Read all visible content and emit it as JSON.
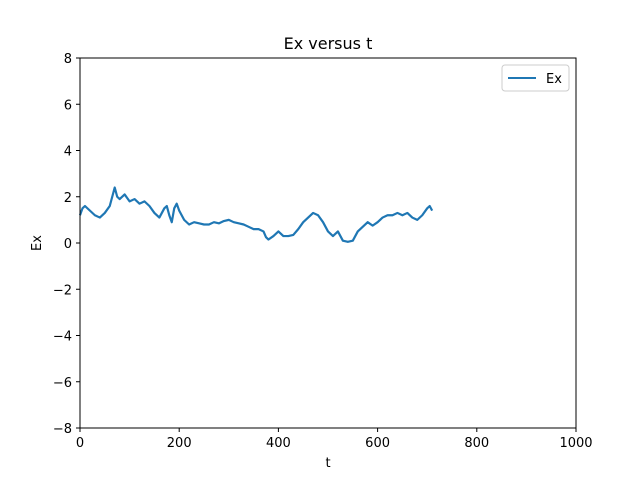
{
  "chart_data": {
    "type": "line",
    "title": "Ex versus t",
    "xlabel": "t",
    "ylabel": "Ex",
    "xlim": [
      0,
      1000
    ],
    "ylim": [
      -8,
      8
    ],
    "xticks": [
      "0",
      "200",
      "400",
      "600",
      "800",
      "1000"
    ],
    "yticks": [
      "−8",
      "−6",
      "−4",
      "−2",
      "0",
      "2",
      "4",
      "6",
      "8"
    ],
    "xtick_values": [
      0,
      200,
      400,
      600,
      800,
      1000
    ],
    "ytick_values": [
      -8,
      -6,
      -4,
      -2,
      0,
      2,
      4,
      6,
      8
    ],
    "grid": false,
    "legend_position": "top-right",
    "series": [
      {
        "name": "Ex",
        "color": "#1f77b4",
        "x": [
          0,
          5,
          10,
          20,
          30,
          40,
          50,
          60,
          65,
          70,
          75,
          80,
          90,
          100,
          110,
          120,
          130,
          140,
          150,
          160,
          170,
          175,
          180,
          185,
          190,
          195,
          200,
          210,
          220,
          230,
          240,
          250,
          260,
          270,
          280,
          290,
          300,
          310,
          320,
          330,
          340,
          350,
          360,
          370,
          375,
          380,
          390,
          400,
          410,
          420,
          430,
          440,
          450,
          460,
          470,
          480,
          490,
          500,
          510,
          520,
          530,
          540,
          550,
          560,
          570,
          580,
          590,
          600,
          610,
          620,
          630,
          640,
          650,
          660,
          670,
          680,
          690,
          700,
          705,
          710
        ],
        "y": [
          1.2,
          1.5,
          1.6,
          1.4,
          1.2,
          1.1,
          1.3,
          1.6,
          2.0,
          2.4,
          2.0,
          1.9,
          2.1,
          1.8,
          1.9,
          1.7,
          1.8,
          1.6,
          1.3,
          1.1,
          1.5,
          1.6,
          1.2,
          0.9,
          1.5,
          1.7,
          1.4,
          1.0,
          0.8,
          0.9,
          0.85,
          0.8,
          0.8,
          0.9,
          0.85,
          0.95,
          1.0,
          0.9,
          0.85,
          0.8,
          0.7,
          0.6,
          0.6,
          0.5,
          0.25,
          0.15,
          0.3,
          0.5,
          0.3,
          0.3,
          0.35,
          0.6,
          0.9,
          1.1,
          1.3,
          1.2,
          0.9,
          0.5,
          0.3,
          0.5,
          0.1,
          0.05,
          0.1,
          0.5,
          0.7,
          0.9,
          0.75,
          0.9,
          1.1,
          1.2,
          1.2,
          1.3,
          1.2,
          1.3,
          1.1,
          1.0,
          1.2,
          1.5,
          1.6,
          1.4
        ]
      }
    ]
  }
}
